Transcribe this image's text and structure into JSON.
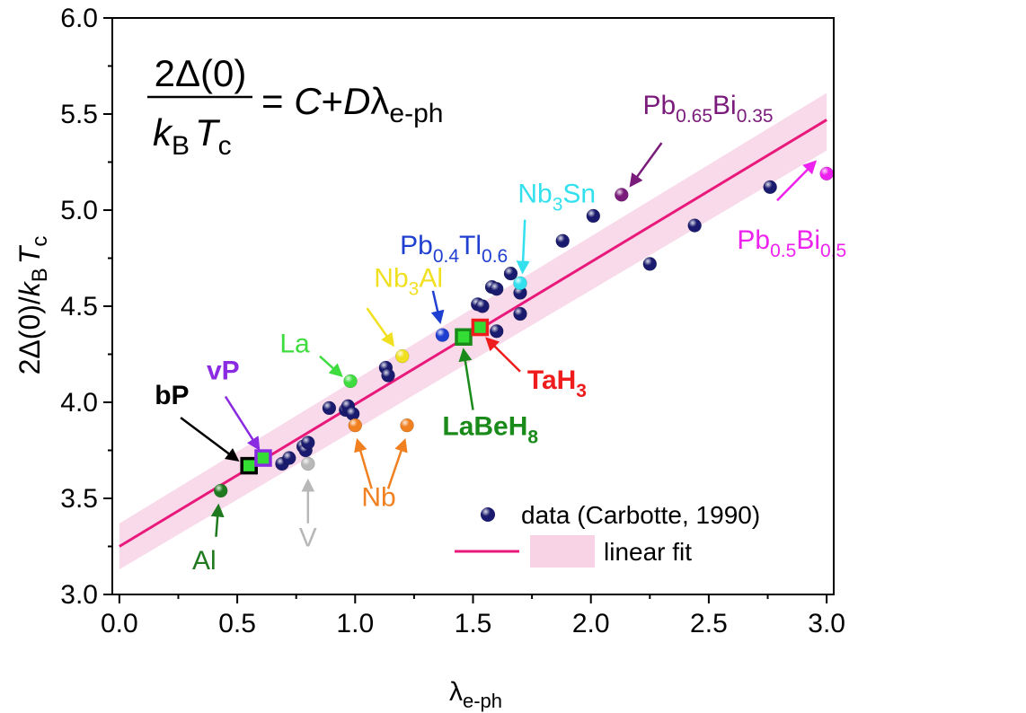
{
  "chart_data": {
    "type": "scatter",
    "xlabel": "λ",
    "xlabel_sub": "e-ph",
    "ylabel_parts": [
      "2Δ(0)/",
      "k",
      "B",
      "T",
      "c"
    ],
    "xlim": [
      -0.03,
      3.03
    ],
    "ylim": [
      3.0,
      6.0
    ],
    "xticks": [
      "0.0",
      "0.5",
      "1.0",
      "1.5",
      "2.0",
      "2.5",
      "3.0"
    ],
    "yticks": [
      "3.0",
      "3.5",
      "4.0",
      "4.5",
      "5.0",
      "5.5",
      "6.0"
    ],
    "formula": {
      "numerator": "2Δ(0)",
      "denominator_k": "k",
      "denominator_B": "B",
      "denominator_T": "T",
      "denominator_c": "c",
      "rhs_eq": "= ",
      "rhs_C": "C",
      "rhs_plus": "+",
      "rhs_D": "D",
      "rhs_lambda": "λ",
      "rhs_sub": "e-ph"
    },
    "fit": {
      "intercept": 3.25,
      "slope": 0.74,
      "band_low": [
        3.13,
        5.31
      ],
      "band_high": [
        3.37,
        5.61
      ],
      "color": "#e8197a",
      "band_color": "#f8d3e6"
    },
    "series": [
      {
        "name": "data (Carbotte, 1990)",
        "color": "#1a1a6e",
        "points": [
          [
            0.69,
            3.68
          ],
          [
            0.72,
            3.71
          ],
          [
            0.78,
            3.77
          ],
          [
            0.79,
            3.75
          ],
          [
            0.8,
            3.79
          ],
          [
            0.89,
            3.97
          ],
          [
            0.96,
            3.96
          ],
          [
            0.97,
            3.98
          ],
          [
            0.99,
            3.94
          ],
          [
            1.13,
            4.18
          ],
          [
            1.14,
            4.14
          ],
          [
            1.52,
            4.51
          ],
          [
            1.54,
            4.5
          ],
          [
            1.58,
            4.6
          ],
          [
            1.6,
            4.59
          ],
          [
            1.6,
            4.37
          ],
          [
            1.66,
            4.67
          ],
          [
            1.7,
            4.57
          ],
          [
            1.7,
            4.46
          ],
          [
            1.88,
            4.84
          ],
          [
            2.01,
            4.97
          ],
          [
            2.25,
            4.72
          ],
          [
            2.44,
            4.92
          ],
          [
            2.76,
            5.12
          ]
        ]
      },
      {
        "name": "linear fit"
      }
    ],
    "highlights": [
      {
        "label": "Al",
        "x": 0.43,
        "y": 3.54,
        "color": "#1f7a1f",
        "lx": 0.36,
        "ly": 3.13
      },
      {
        "label": "V",
        "x": 0.8,
        "y": 3.68,
        "color": "#b8b8b8",
        "lx": 0.8,
        "ly": 3.25
      },
      {
        "label": "La",
        "x": 0.98,
        "y": 4.11,
        "color": "#3fdc3f",
        "lx": 0.68,
        "ly": 4.26
      },
      {
        "label": "Nb",
        "x": 1.0,
        "y": 3.88,
        "color": "#f08020",
        "lx": 1.1,
        "ly": 3.46
      },
      {
        "label": "Nb",
        "x": 1.22,
        "y": 3.88,
        "color": "#f08020"
      },
      {
        "label": "Nb",
        "sub": "3",
        "label2": "Al",
        "x": 1.2,
        "y": 4.24,
        "color": "#f0e020",
        "lx": 1.08,
        "ly": 4.6
      },
      {
        "label": "Pb",
        "sub": "0.4",
        "label2": "Tl",
        "sub2": "0.6",
        "x": 1.37,
        "y": 4.35,
        "color": "#1f3fd0",
        "lx": 1.19,
        "ly": 4.77
      },
      {
        "label": "Nb",
        "sub": "3",
        "label2": "Sn",
        "x": 1.7,
        "y": 4.62,
        "color": "#33e0ee",
        "lx": 1.69,
        "ly": 5.04
      },
      {
        "label": "Pb",
        "sub": "0.65",
        "label2": "Bi",
        "sub2": "0.35",
        "x": 2.13,
        "y": 5.08,
        "color": "#7a1a7a",
        "lx": 2.22,
        "ly": 5.5
      },
      {
        "label": "Pb",
        "sub": "0.5",
        "label2": "Bi",
        "sub2": "0.5",
        "x": 3.0,
        "y": 5.19,
        "color": "#ee22ee",
        "lx": 2.62,
        "ly": 4.8
      }
    ],
    "squares": [
      {
        "label": "bP",
        "x": 0.55,
        "y": 3.67,
        "edge": "#000000",
        "lx": 0.15,
        "ly": 3.99
      },
      {
        "label": "vP",
        "x": 0.61,
        "y": 3.71,
        "edge": "#8a2be2",
        "lx": 0.37,
        "ly": 4.12
      },
      {
        "label": "LaBeH",
        "sub": "8",
        "x": 1.46,
        "y": 4.34,
        "edge": "#1a8a1a",
        "lx": 1.37,
        "ly": 3.83
      },
      {
        "label": "TaH",
        "sub": "3",
        "x": 1.53,
        "y": 4.39,
        "edge": "#ee1c1c",
        "lx": 1.73,
        "ly": 4.07
      }
    ],
    "legend_placement": "bottom-right"
  }
}
